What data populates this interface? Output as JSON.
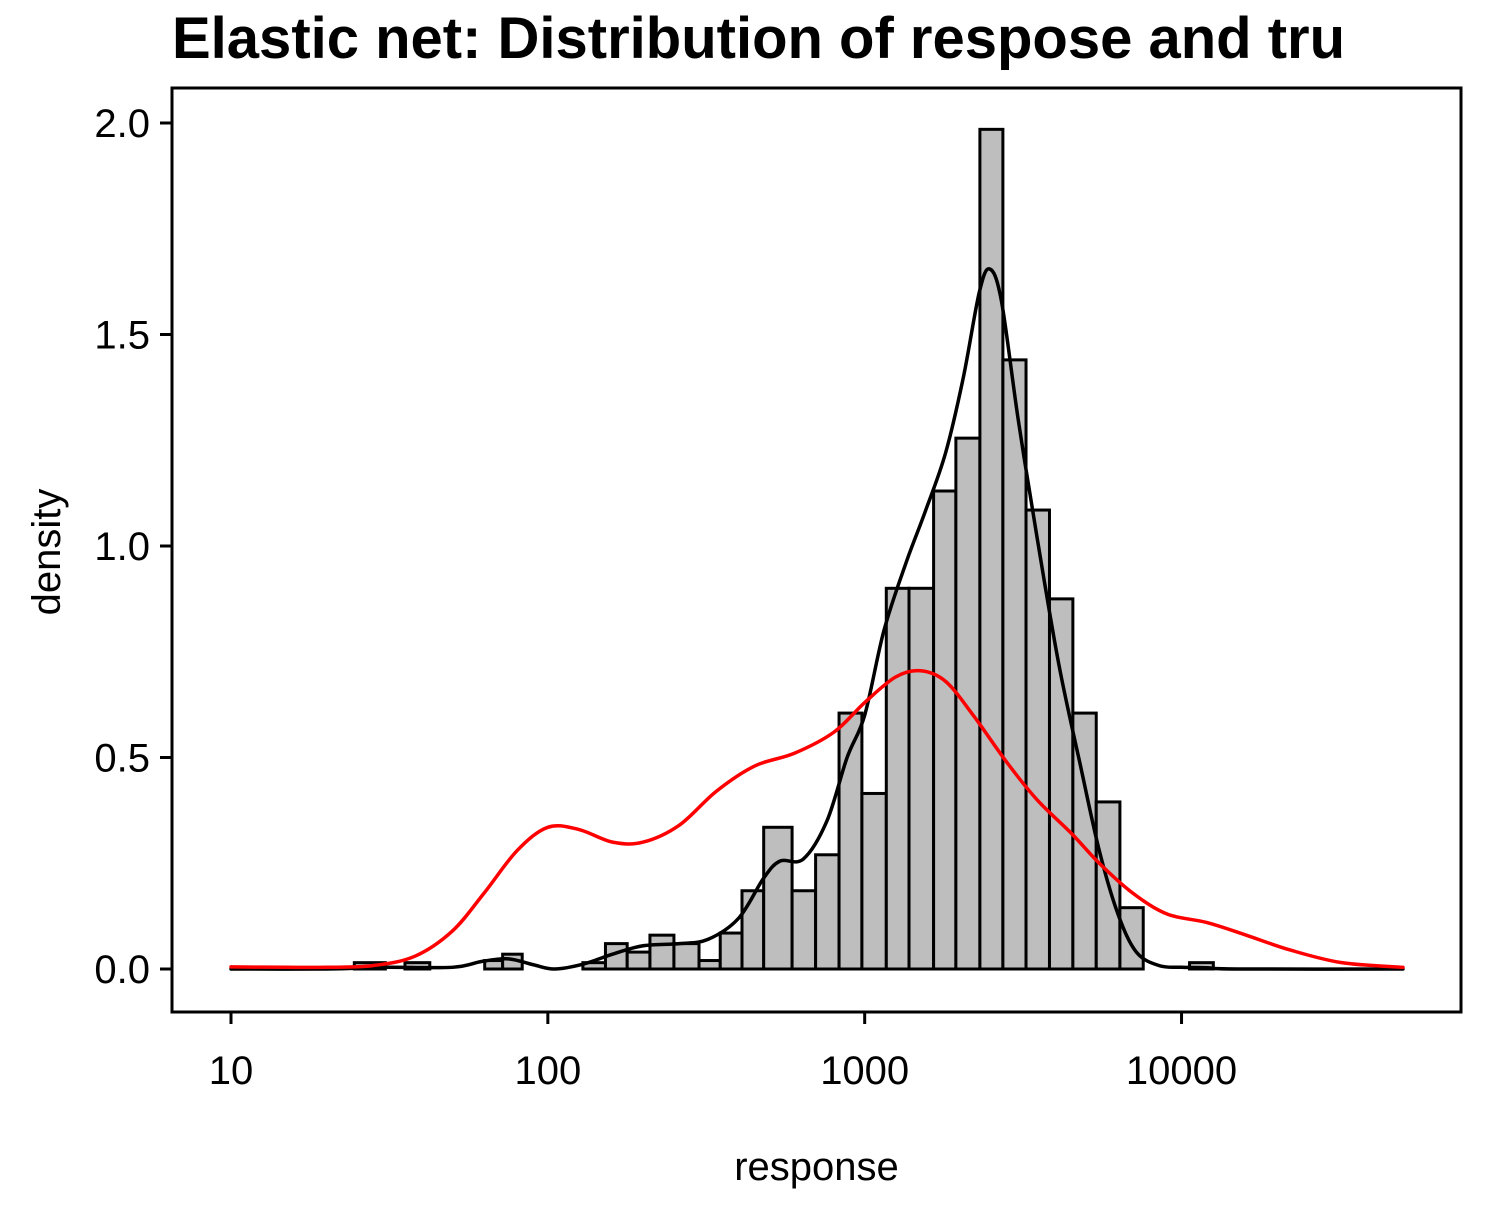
{
  "chart_data": {
    "type": "bar",
    "title": "Elastic net: Distribution of respose and tru",
    "xlabel": "response",
    "ylabel": "density",
    "x_scale": "log10",
    "xlim": [
      5.5,
      55000
    ],
    "ylim": [
      -0.1,
      2.08
    ],
    "x_ticks": [
      {
        "value": 10,
        "label": "10"
      },
      {
        "value": 100,
        "label": "100"
      },
      {
        "value": 1000,
        "label": "1000"
      },
      {
        "value": 10000,
        "label": "10000"
      }
    ],
    "y_ticks": [
      {
        "value": 0,
        "label": "0.0"
      },
      {
        "value": 0.5,
        "label": "0.5"
      },
      {
        "value": 1,
        "label": "1.0"
      },
      {
        "value": 1.5,
        "label": "1.5"
      },
      {
        "value": 2,
        "label": "2.0"
      }
    ],
    "grid": false,
    "histogram": {
      "fill": "#bebebe",
      "outline": "#000000",
      "bins": [
        {
          "x_from": 24.5,
          "x_to": 30.7,
          "density": 0.015
        },
        {
          "x_from": 35.4,
          "x_to": 42.4,
          "density": 0.015
        },
        {
          "x_from": 63.2,
          "x_to": 72.0,
          "density": 0.02
        },
        {
          "x_from": 72.0,
          "x_to": 83.0,
          "density": 0.035
        },
        {
          "x_from": 129.0,
          "x_to": 152.0,
          "density": 0.015
        },
        {
          "x_from": 152.0,
          "x_to": 178.0,
          "density": 0.06
        },
        {
          "x_from": 178.0,
          "x_to": 210.0,
          "density": 0.04
        },
        {
          "x_from": 210.0,
          "x_to": 250.0,
          "density": 0.08
        },
        {
          "x_from": 250.0,
          "x_to": 300.0,
          "density": 0.06
        },
        {
          "x_from": 300.0,
          "x_to": 350.0,
          "density": 0.02
        },
        {
          "x_from": 350.0,
          "x_to": 410.0,
          "density": 0.085
        },
        {
          "x_from": 410.0,
          "x_to": 480.0,
          "density": 0.185
        },
        {
          "x_from": 480.0,
          "x_to": 590.0,
          "density": 0.335
        },
        {
          "x_from": 590.0,
          "x_to": 700.0,
          "density": 0.185
        },
        {
          "x_from": 700.0,
          "x_to": 830.0,
          "density": 0.27
        },
        {
          "x_from": 830.0,
          "x_to": 980.0,
          "density": 0.605
        },
        {
          "x_from": 980.0,
          "x_to": 1170.0,
          "density": 0.415
        },
        {
          "x_from": 1170.0,
          "x_to": 1380.0,
          "density": 0.9
        },
        {
          "x_from": 1380.0,
          "x_to": 1650.0,
          "density": 0.9
        },
        {
          "x_from": 1650.0,
          "x_to": 1940.0,
          "density": 1.13
        },
        {
          "x_from": 1940.0,
          "x_to": 2310.0,
          "density": 1.255
        },
        {
          "x_from": 2310.0,
          "x_to": 2730.0,
          "density": 1.985
        },
        {
          "x_from": 2730.0,
          "x_to": 3230.0,
          "density": 1.44
        },
        {
          "x_from": 3230.0,
          "x_to": 3830.0,
          "density": 1.085
        },
        {
          "x_from": 3830.0,
          "x_to": 4540.0,
          "density": 0.875
        },
        {
          "x_from": 4540.0,
          "x_to": 5380.0,
          "density": 0.605
        },
        {
          "x_from": 5380.0,
          "x_to": 6390.0,
          "density": 0.395
        },
        {
          "x_from": 6390.0,
          "x_to": 7570.0,
          "density": 0.145
        },
        {
          "x_from": 10600.0,
          "x_to": 12600.0,
          "density": 0.015
        }
      ]
    },
    "series": [
      {
        "color": "#000000",
        "points": [
          [
            10,
            0.0
          ],
          [
            20,
            0.0
          ],
          [
            30,
            0.004
          ],
          [
            50,
            0.004
          ],
          [
            62,
            0.018
          ],
          [
            75,
            0.024
          ],
          [
            90,
            0.01
          ],
          [
            105,
            0.0
          ],
          [
            130,
            0.012
          ],
          [
            160,
            0.035
          ],
          [
            200,
            0.055
          ],
          [
            260,
            0.06
          ],
          [
            320,
            0.07
          ],
          [
            400,
            0.12
          ],
          [
            480,
            0.215
          ],
          [
            540,
            0.255
          ],
          [
            640,
            0.26
          ],
          [
            760,
            0.35
          ],
          [
            880,
            0.5
          ],
          [
            1000,
            0.6
          ],
          [
            1150,
            0.8
          ],
          [
            1350,
            0.96
          ],
          [
            1550,
            1.08
          ],
          [
            1800,
            1.22
          ],
          [
            2050,
            1.4
          ],
          [
            2300,
            1.6
          ],
          [
            2480,
            1.655
          ],
          [
            2700,
            1.58
          ],
          [
            3050,
            1.3
          ],
          [
            3500,
            1.02
          ],
          [
            4100,
            0.72
          ],
          [
            4800,
            0.48
          ],
          [
            5500,
            0.28
          ],
          [
            6300,
            0.13
          ],
          [
            7200,
            0.04
          ],
          [
            8500,
            0.008
          ],
          [
            10000,
            0.004
          ],
          [
            12000,
            0.003
          ],
          [
            15000,
            0.0
          ],
          [
            50000,
            0.0
          ]
        ]
      },
      {
        "color": "#ff0000",
        "points": [
          [
            10,
            0.005
          ],
          [
            15,
            0.004
          ],
          [
            20,
            0.004
          ],
          [
            28,
            0.008
          ],
          [
            38,
            0.03
          ],
          [
            50,
            0.09
          ],
          [
            63,
            0.18
          ],
          [
            80,
            0.28
          ],
          [
            100,
            0.335
          ],
          [
            125,
            0.33
          ],
          [
            160,
            0.3
          ],
          [
            200,
            0.3
          ],
          [
            260,
            0.34
          ],
          [
            340,
            0.42
          ],
          [
            450,
            0.48
          ],
          [
            600,
            0.51
          ],
          [
            800,
            0.56
          ],
          [
            1000,
            0.63
          ],
          [
            1250,
            0.69
          ],
          [
            1500,
            0.705
          ],
          [
            1800,
            0.68
          ],
          [
            2200,
            0.6
          ],
          [
            2800,
            0.49
          ],
          [
            3500,
            0.4
          ],
          [
            4500,
            0.32
          ],
          [
            5500,
            0.25
          ],
          [
            7000,
            0.18
          ],
          [
            9000,
            0.13
          ],
          [
            12000,
            0.11
          ],
          [
            16000,
            0.08
          ],
          [
            22000,
            0.045
          ],
          [
            32000,
            0.015
          ],
          [
            50000,
            0.004
          ]
        ]
      }
    ]
  }
}
